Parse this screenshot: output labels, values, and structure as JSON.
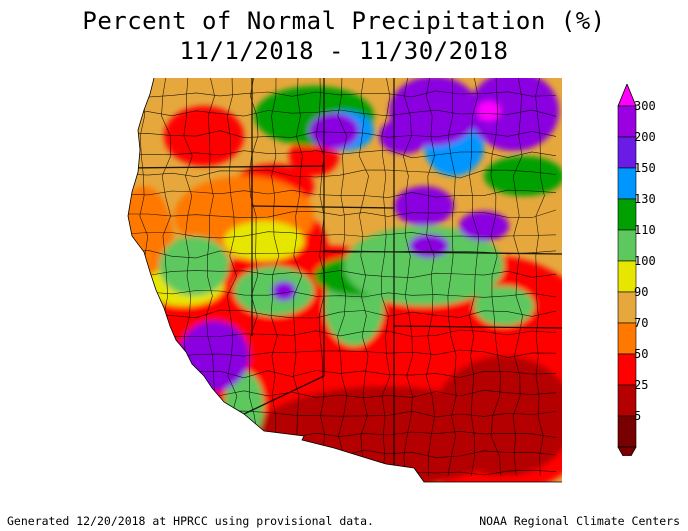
{
  "title": {
    "line1": "Percent of Normal Precipitation (%)",
    "line2": "11/1/2018 - 11/30/2018"
  },
  "legend": {
    "levels": [
      {
        "label": "300",
        "color": "#ff00ff"
      },
      {
        "label": "200",
        "color": "#9b00e0"
      },
      {
        "label": "150",
        "color": "#6a1ce6"
      },
      {
        "label": "130",
        "color": "#0096ff"
      },
      {
        "label": "110",
        "color": "#00a000"
      },
      {
        "label": "100",
        "color": "#5dc85d"
      },
      {
        "label": "90",
        "color": "#e6e600"
      },
      {
        "label": "70",
        "color": "#e6a83c"
      },
      {
        "label": "50",
        "color": "#ff7800"
      },
      {
        "label": "25",
        "color": "#ff0000"
      },
      {
        "label": "5",
        "color": "#b40000"
      }
    ],
    "bottom_color": "#780000"
  },
  "map_colors": {
    "magenta": "#ff00ff",
    "purple": "#8a00e0",
    "blue": "#0096ff",
    "darkgreen": "#00a000",
    "green": "#5dc85d",
    "yellow": "#e6e600",
    "tan": "#e6a83c",
    "orange": "#ff7800",
    "red": "#ff0000",
    "darkred": "#b40000"
  },
  "footer": {
    "left": "Generated 12/20/2018 at HPRCC using provisional data.",
    "right": "NOAA Regional Climate Centers"
  }
}
